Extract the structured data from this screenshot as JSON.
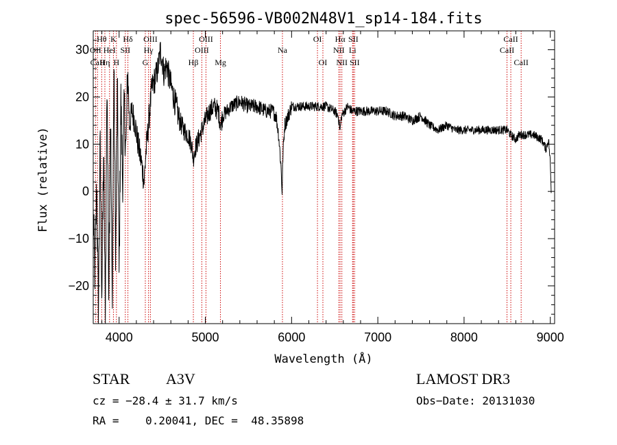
{
  "chart_data": {
    "type": "line",
    "title": "spec-56596-VB002N48V1_sp14-184.fits",
    "xlabel": "Wavelength (Å)",
    "ylabel": "Flux (relative)",
    "xlim": [
      3700,
      9050
    ],
    "ylim": [
      -28,
      34
    ],
    "x_ticks": [
      4000,
      5000,
      6000,
      7000,
      8000,
      9000
    ],
    "y_ticks": [
      -20,
      -10,
      0,
      10,
      20,
      30
    ],
    "grid": false,
    "line_color": "#000000",
    "marker_color": "#cc0000",
    "spectrum_anchors": [
      [
        3700,
        -5
      ],
      [
        3720,
        -18
      ],
      [
        3740,
        2
      ],
      [
        3760,
        -26
      ],
      [
        3780,
        10
      ],
      [
        3800,
        -22
      ],
      [
        3820,
        8
      ],
      [
        3840,
        -27
      ],
      [
        3860,
        25
      ],
      [
        3880,
        -20
      ],
      [
        3900,
        18
      ],
      [
        3920,
        -24
      ],
      [
        3940,
        26
      ],
      [
        3960,
        -15
      ],
      [
        3980,
        22
      ],
      [
        4000,
        -18
      ],
      [
        4020,
        20
      ],
      [
        4040,
        2
      ],
      [
        4060,
        18
      ],
      [
        4080,
        8
      ],
      [
        4100,
        26
      ],
      [
        4120,
        14
      ],
      [
        4150,
        17
      ],
      [
        4180,
        15
      ],
      [
        4220,
        10
      ],
      [
        4260,
        6
      ],
      [
        4290,
        2
      ],
      [
        4310,
        8
      ],
      [
        4340,
        14
      ],
      [
        4380,
        22
      ],
      [
        4420,
        24
      ],
      [
        4450,
        26
      ],
      [
        4480,
        30
      ],
      [
        4500,
        28
      ],
      [
        4520,
        25
      ],
      [
        4550,
        27
      ],
      [
        4580,
        24
      ],
      [
        4620,
        21
      ],
      [
        4660,
        18
      ],
      [
        4700,
        15
      ],
      [
        4750,
        13
      ],
      [
        4800,
        12
      ],
      [
        4840,
        10
      ],
      [
        4860,
        7
      ],
      [
        4880,
        9
      ],
      [
        4920,
        11
      ],
      [
        4960,
        13
      ],
      [
        5000,
        15
      ],
      [
        5050,
        17
      ],
      [
        5100,
        18
      ],
      [
        5150,
        17
      ],
      [
        5180,
        14
      ],
      [
        5200,
        16
      ],
      [
        5300,
        18
      ],
      [
        5400,
        19
      ],
      [
        5500,
        18
      ],
      [
        5600,
        18
      ],
      [
        5700,
        17
      ],
      [
        5780,
        17
      ],
      [
        5820,
        16
      ],
      [
        5850,
        12
      ],
      [
        5875,
        6
      ],
      [
        5890,
        0
      ],
      [
        5900,
        8
      ],
      [
        5920,
        14
      ],
      [
        6000,
        18
      ],
      [
        6100,
        18
      ],
      [
        6200,
        18
      ],
      [
        6300,
        18
      ],
      [
        6400,
        18
      ],
      [
        6500,
        17
      ],
      [
        6540,
        16
      ],
      [
        6562,
        13
      ],
      [
        6580,
        16
      ],
      [
        6650,
        18
      ],
      [
        6700,
        17
      ],
      [
        6800,
        17
      ],
      [
        6900,
        17
      ],
      [
        7000,
        17
      ],
      [
        7100,
        17
      ],
      [
        7200,
        16
      ],
      [
        7300,
        16
      ],
      [
        7400,
        15
      ],
      [
        7500,
        16
      ],
      [
        7600,
        14
      ],
      [
        7700,
        13
      ],
      [
        7800,
        14
      ],
      [
        7900,
        13
      ],
      [
        8000,
        13
      ],
      [
        8100,
        13
      ],
      [
        8200,
        13
      ],
      [
        8300,
        13
      ],
      [
        8400,
        13
      ],
      [
        8500,
        13
      ],
      [
        8540,
        12
      ],
      [
        8600,
        11
      ],
      [
        8640,
        12
      ],
      [
        8700,
        12
      ],
      [
        8800,
        12
      ],
      [
        8900,
        11
      ],
      [
        8950,
        9
      ],
      [
        8980,
        11
      ],
      [
        9000,
        6
      ],
      [
        9010,
        0
      ]
    ],
    "line_markers": [
      {
        "label": "Hθ",
        "x": 3798,
        "row": 1
      },
      {
        "label": "OII",
        "x": 3727,
        "row": 2
      },
      {
        "label": "CaII",
        "x": 3750,
        "row": 3
      },
      {
        "label": "Hη",
        "x": 3835,
        "row": 3
      },
      {
        "label": "HeI",
        "x": 3889,
        "row": 2
      },
      {
        "label": "K",
        "x": 3934,
        "row": 1
      },
      {
        "label": "H",
        "x": 3969,
        "row": 3
      },
      {
        "label": "SII",
        "x": 4072,
        "row": 2
      },
      {
        "label": "Hδ",
        "x": 4102,
        "row": 1
      },
      {
        "label": "G",
        "x": 4304,
        "row": 3
      },
      {
        "label": "Hγ",
        "x": 4341,
        "row": 2
      },
      {
        "label": "OIII",
        "x": 4363,
        "row": 1
      },
      {
        "label": "Hβ",
        "x": 4861,
        "row": 3
      },
      {
        "label": "OIII",
        "x": 4959,
        "row": 2
      },
      {
        "label": "OIII",
        "x": 5007,
        "row": 1
      },
      {
        "label": "Mg",
        "x": 5175,
        "row": 3
      },
      {
        "label": "Na",
        "x": 5894,
        "row": 2
      },
      {
        "label": "OI",
        "x": 6300,
        "row": 1
      },
      {
        "label": "OI",
        "x": 6363,
        "row": 3
      },
      {
        "label": "NII",
        "x": 6548,
        "row": 2
      },
      {
        "label": "Hα",
        "x": 6563,
        "row": 1
      },
      {
        "label": "NII",
        "x": 6583,
        "row": 3
      },
      {
        "label": "Li",
        "x": 6707,
        "row": 2
      },
      {
        "label": "SII",
        "x": 6716,
        "row": 1
      },
      {
        "label": "SII",
        "x": 6731,
        "row": 3
      },
      {
        "label": "CaII",
        "x": 8498,
        "row": 2
      },
      {
        "label": "CaII",
        "x": 8542,
        "row": 1
      },
      {
        "label": "CaII",
        "x": 8662,
        "row": 3
      }
    ]
  },
  "footer": {
    "object_type": "STAR",
    "subclass": "A3V",
    "survey": "LAMOST DR3",
    "cz": "cz = −28.4 ± 31.7 km/s",
    "obs_date": "Obs−Date: 20131030",
    "coords": "RA =    0.20041, DEC =  48.35898"
  }
}
